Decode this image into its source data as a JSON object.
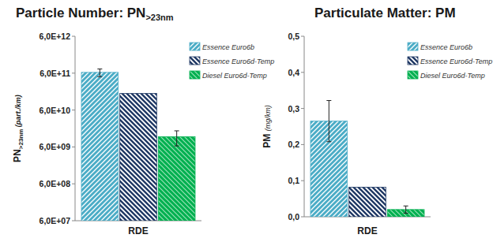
{
  "chart_data": [
    {
      "type": "bar",
      "title": "Particle Number: PN>23nm",
      "y_label": "PN>23nm (part./km)",
      "categories": [
        "RDE"
      ],
      "log": "y",
      "legend": "top-right",
      "ylim": [
        60000000,
        6000000000000
      ],
      "yticks": [
        {
          "value": 60000000,
          "label": "6,0E+07"
        },
        {
          "value": 600000000,
          "label": "6,0E+08"
        },
        {
          "value": 6000000000,
          "label": "6,0E+09"
        },
        {
          "value": 60000000000,
          "label": "6,0E+10"
        },
        {
          "value": 600000000000,
          "label": "6,0E+11"
        },
        {
          "value": 6000000000000,
          "label": "6,0E+12"
        }
      ],
      "series": [
        {
          "name": "Essence Euro6b",
          "color": "#4bacc6",
          "values": [
            630000000000
          ],
          "errors": [
            150000000000
          ]
        },
        {
          "name": "Essence Euro6d-Temp",
          "color": "#1f3864",
          "values": [
            170000000000
          ],
          "errors": [
            null
          ]
        },
        {
          "name": "Diesel Euro6d-Temp",
          "color": "#00b050",
          "values": [
            11400000000
          ],
          "errors": [
            5000000000
          ]
        }
      ]
    },
    {
      "type": "bar",
      "title": "Particulate Matter: PM",
      "y_label": "PM (mg/km)",
      "categories": [
        "RDE"
      ],
      "legend": "top-right",
      "ylim": [
        0,
        0.5
      ],
      "yticks": [
        {
          "value": 0,
          "label": "0,0"
        },
        {
          "value": 0.1,
          "label": "0,1"
        },
        {
          "value": 0.2,
          "label": "0,2"
        },
        {
          "value": 0.3,
          "label": "0,3"
        },
        {
          "value": 0.4,
          "label": "0,4"
        },
        {
          "value": 0.5,
          "label": "0,5"
        }
      ],
      "series": [
        {
          "name": "Essence Euro6b",
          "color": "#4bacc6",
          "values": [
            0.265
          ],
          "errors": [
            0.057
          ]
        },
        {
          "name": "Essence Euro6d-Temp",
          "color": "#1f3864",
          "values": [
            0.082
          ],
          "errors": [
            null
          ]
        },
        {
          "name": "Diesel Euro6d-Temp",
          "color": "#00b050",
          "values": [
            0.02
          ],
          "errors": [
            0.01
          ]
        }
      ]
    }
  ]
}
